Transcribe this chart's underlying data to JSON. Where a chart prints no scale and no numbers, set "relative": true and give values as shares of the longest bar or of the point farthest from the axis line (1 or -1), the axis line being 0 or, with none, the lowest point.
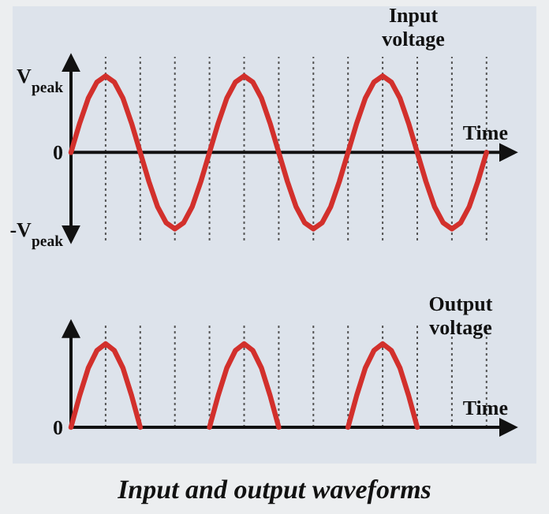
{
  "chart_data": [
    {
      "type": "line",
      "xlabel": "Time",
      "categories": [
        null,
        null,
        null,
        null,
        null,
        null,
        null,
        null,
        null,
        null,
        null,
        null,
        null,
        null,
        null,
        null,
        null,
        null,
        null,
        null,
        null,
        null,
        null,
        null,
        null,
        null,
        null,
        null,
        null,
        null,
        null,
        null,
        null,
        null,
        null,
        null,
        null,
        null,
        null,
        null,
        null,
        null,
        null,
        null,
        null,
        null,
        null,
        null,
        null
      ],
      "series": [
        {
          "name": "Input voltage",
          "color": "#d2302c",
          "values": [
            0,
            0.38,
            0.71,
            0.92,
            1,
            0.92,
            0.71,
            0.38,
            0,
            -0.38,
            -0.71,
            -0.92,
            -1,
            -0.92,
            -0.71,
            -0.38,
            0,
            0.38,
            0.71,
            0.92,
            1,
            0.92,
            0.71,
            0.38,
            0,
            -0.38,
            -0.71,
            -0.92,
            -1,
            -0.92,
            -0.71,
            -0.38,
            0,
            0.38,
            0.71,
            0.92,
            1,
            0.92,
            0.71,
            0.38,
            0,
            -0.38,
            -0.71,
            -0.92,
            -1,
            -0.92,
            -0.71,
            -0.38,
            0
          ]
        }
      ],
      "relative": true,
      "annotations": [
        "V$_{peak}$",
        "0",
        "-V$_{peak}$"
      ],
      "grid": "x",
      "line_style": "solid",
      "marker": "none"
    },
    {
      "type": "line",
      "xlabel": "Time",
      "title": "Input and output waveforms",
      "categories": [
        null,
        null,
        null,
        null,
        null,
        null,
        null,
        null,
        null,
        null,
        null,
        null,
        null,
        null,
        null,
        null,
        null,
        null,
        null,
        null,
        null,
        null,
        null,
        null,
        null,
        null,
        null,
        null,
        null,
        null,
        null,
        null,
        null,
        null,
        null,
        null,
        null,
        null,
        null,
        null,
        null,
        null,
        null,
        null,
        null,
        null,
        null,
        null,
        null
      ],
      "series": [
        {
          "name": "Output voltage",
          "color": "#d2302c",
          "values": [
            0,
            0.38,
            0.71,
            0.92,
            1,
            0.92,
            0.71,
            0.38,
            0,
            null,
            null,
            null,
            null,
            null,
            null,
            null,
            0,
            0.38,
            0.71,
            0.92,
            1,
            0.92,
            0.71,
            0.38,
            0,
            null,
            null,
            null,
            null,
            null,
            null,
            null,
            0,
            0.38,
            0.71,
            0.92,
            1,
            0.92,
            0.71,
            0.38,
            0,
            null,
            null,
            null,
            null,
            null,
            null,
            null,
            null
          ]
        }
      ],
      "relative": true,
      "annotations": [
        "0"
      ],
      "grid": "x",
      "line_style": "solid",
      "marker": "none"
    }
  ]
}
